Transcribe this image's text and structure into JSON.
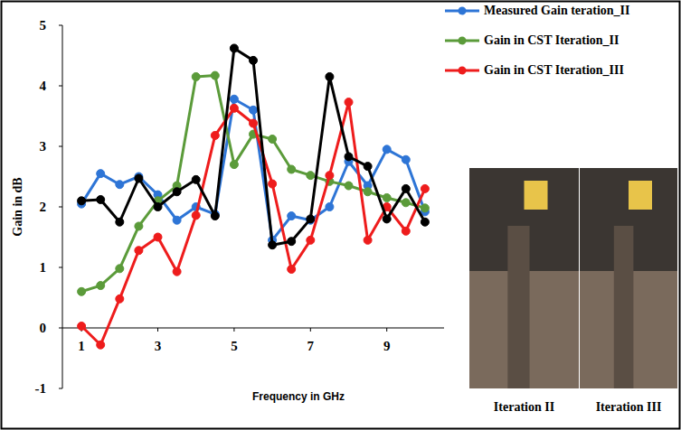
{
  "chart_data": {
    "type": "line",
    "y_label": "Gain in dB",
    "x_label": "Frequency in GHz",
    "x": [
      1,
      1.5,
      2,
      2.5,
      3,
      3.5,
      4,
      4.5,
      5,
      5.5,
      6,
      6.5,
      7,
      7.5,
      8,
      8.5,
      9,
      9.5,
      10
    ],
    "xlim": [
      0.5,
      10.5
    ],
    "xticks": [
      1,
      3,
      5,
      7,
      9
    ],
    "ylim": [
      -1,
      5
    ],
    "yticks": [
      -1,
      0,
      1,
      2,
      3,
      4,
      5
    ],
    "grid": false,
    "legend": "right",
    "series": [
      {
        "name": "Measured Gain teration_II",
        "color": "#2e75d6",
        "marker": "circle",
        "values": [
          2.05,
          2.55,
          2.37,
          2.5,
          2.2,
          1.78,
          2.0,
          1.88,
          3.78,
          3.6,
          1.45,
          1.85,
          1.78,
          2.0,
          2.75,
          2.35,
          2.95,
          2.78,
          1.92
        ]
      },
      {
        "name": "Gain in CST Iteration_II",
        "color": "#5b9b3a",
        "marker": "circle",
        "values": [
          0.6,
          0.7,
          0.98,
          1.68,
          2.1,
          2.35,
          4.15,
          4.17,
          2.7,
          3.2,
          3.12,
          2.62,
          2.52,
          2.42,
          2.35,
          2.25,
          2.15,
          2.07,
          1.98
        ]
      },
      {
        "name": "Gain in CST Iteration_III",
        "color": "#ee1c1c",
        "marker": "circle",
        "values": [
          0.03,
          -0.28,
          0.48,
          1.28,
          1.5,
          0.93,
          1.86,
          3.18,
          3.63,
          3.38,
          2.38,
          0.97,
          1.45,
          2.52,
          3.73,
          1.45,
          2.0,
          1.6,
          2.3
        ]
      },
      {
        "color": "#000000",
        "marker": "circle",
        "values": [
          2.1,
          2.12,
          1.75,
          2.47,
          2.0,
          2.25,
          2.45,
          1.85,
          4.62,
          4.42,
          1.37,
          1.43,
          1.8,
          4.15,
          2.83,
          2.67,
          1.8,
          2.3,
          1.75
        ]
      }
    ]
  },
  "photos": [
    {
      "caption": "Iteration II"
    },
    {
      "caption": "Iteration III"
    }
  ]
}
